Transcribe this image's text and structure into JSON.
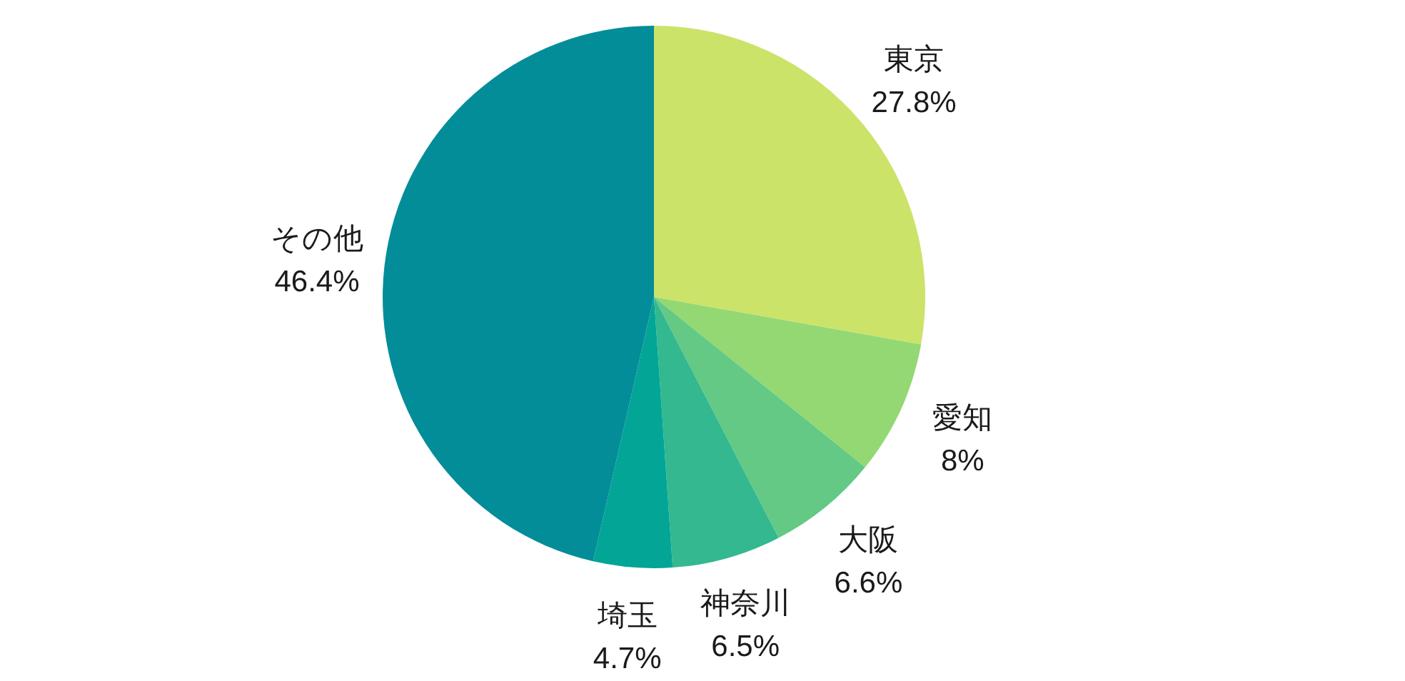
{
  "chart_data": {
    "type": "pie",
    "categories": [
      "東京",
      "愛知",
      "大阪",
      "神奈川",
      "埼玉",
      "その他"
    ],
    "values": [
      27.8,
      8,
      6.6,
      6.5,
      4.7,
      46.4
    ],
    "value_labels": [
      "27.8%",
      "8%",
      "6.6%",
      "6.5%",
      "4.7%",
      "46.4%"
    ],
    "colors": [
      "#cce36a",
      "#93d873",
      "#63c985",
      "#33b88f",
      "#02a596",
      "#038d99"
    ]
  }
}
